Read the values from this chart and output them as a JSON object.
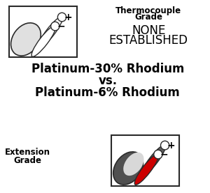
{
  "title_line1": "Platinum-30% Rhodium",
  "title_line2": "vs.",
  "title_line3": "Platinum-6% Rhodium",
  "thermocouple_label1": "Thermocouple",
  "thermocouple_label2": "Grade",
  "none_line1": "NONE",
  "none_line2": "ESTABLISHED",
  "extension_label1": "Extension",
  "extension_label2": "Grade",
  "plus_sign": "+",
  "minus_sign": "−",
  "bg_color": "#ffffff",
  "text_color_black": "#000000",
  "wire_color_dark": "#606060",
  "wire_color_red": "#cc0000",
  "wire_color_white": "#ffffff",
  "wire_outline": "#2a2a2a",
  "sheath_gray": "#888888",
  "sheath_dark": "#505050"
}
